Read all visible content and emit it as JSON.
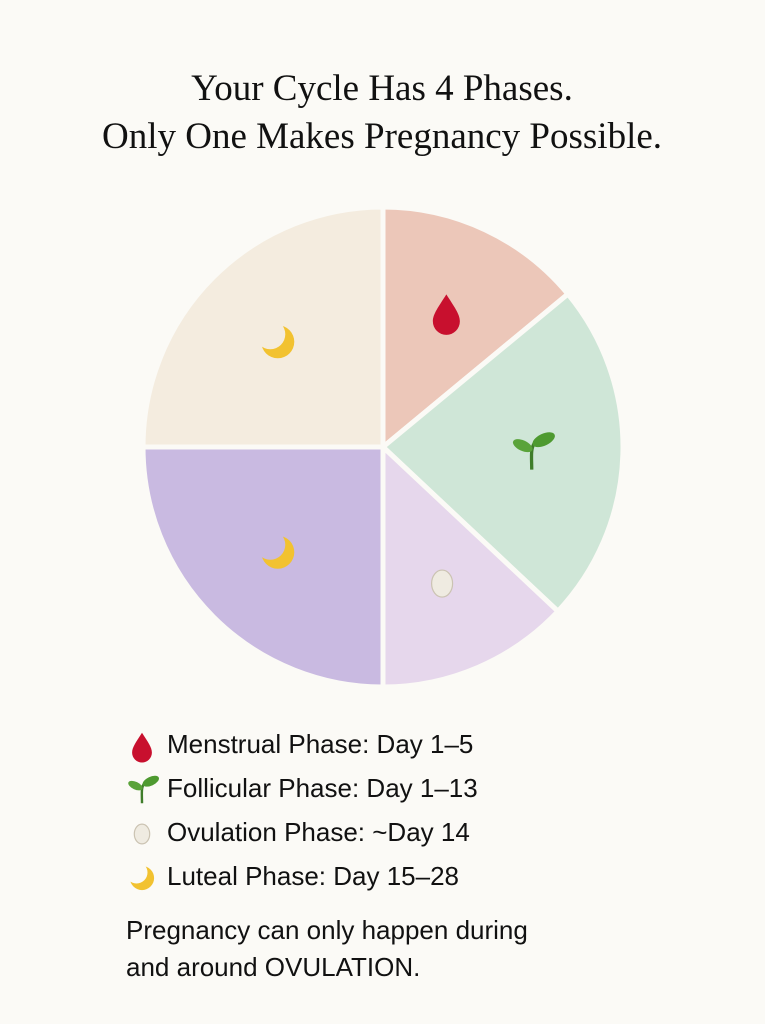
{
  "chart_data": {
    "type": "pie",
    "title": [
      "Your Cycle Has 4 Phases.",
      "Only One Makes Pregnancy Possible."
    ],
    "values": [
      14,
      23,
      13,
      25,
      25
    ],
    "colors": [
      "#ecc7b9",
      "#cfe6d7",
      "#e6d7ec",
      "#c9bae1",
      "#f4ecdf"
    ],
    "legend_items": [
      "Menstrual Phase: Day 1–5",
      "Follicular Phase: Day 1–13",
      "Ovulation Phase: ~Day 14",
      "Luteal Phase: Day 15–28"
    ],
    "note": [
      "Pregnancy can only happen during",
      "and around OVULATION."
    ]
  }
}
